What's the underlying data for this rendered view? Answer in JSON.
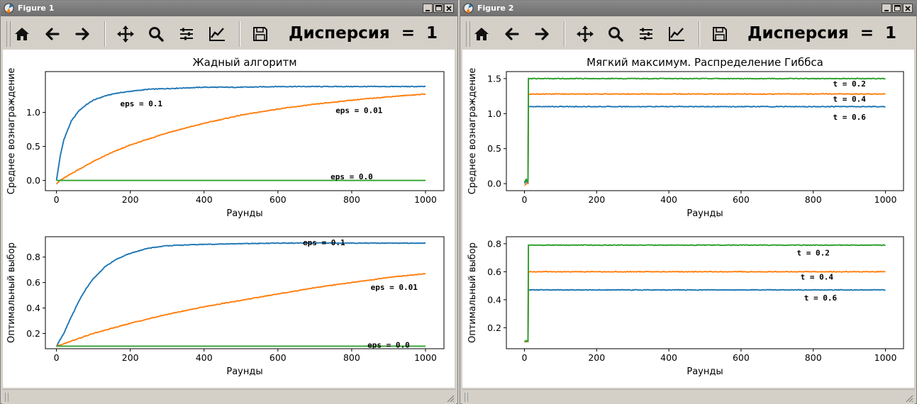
{
  "windows": [
    {
      "title": "Figure 1",
      "toolbar_message": "Дисперсия  =  1",
      "tools": [
        "home-icon",
        "back-arrow-icon",
        "forward-arrow-icon",
        "pan-icon",
        "zoom-icon",
        "subplots-icon",
        "edit-axes-icon",
        "save-icon"
      ]
    },
    {
      "title": "Figure 2",
      "toolbar_message": "Дисперсия  =  1",
      "tools": [
        "home-icon",
        "back-arrow-icon",
        "forward-arrow-icon",
        "pan-icon",
        "zoom-icon",
        "subplots-icon",
        "edit-axes-icon",
        "save-icon"
      ]
    }
  ],
  "colors": {
    "blue": "#1f77b4",
    "orange": "#ff7f0e",
    "green": "#2ca02c",
    "titlebar": "#7a7a7a",
    "window_bg": "#d4d0c8"
  },
  "chart_data": [
    {
      "type": "line",
      "figure": "Figure 1",
      "title": "Жадный алгоритм",
      "xlabel": "Раунды",
      "ylabel": "Среднее вознаграждение",
      "xlim": [
        -30,
        1050
      ],
      "ylim": [
        -0.15,
        1.6
      ],
      "xticks": [
        0,
        200,
        400,
        600,
        800,
        1000
      ],
      "yticks": [
        0.0,
        0.5,
        1.0
      ],
      "series": [
        {
          "color": "blue",
          "x": [
            0,
            10,
            20,
            40,
            60,
            80,
            100,
            130,
            160,
            200,
            250,
            300,
            400,
            500,
            600,
            700,
            800,
            900,
            1000
          ],
          "values": [
            0.0,
            0.35,
            0.6,
            0.87,
            1.02,
            1.11,
            1.18,
            1.24,
            1.28,
            1.31,
            1.34,
            1.35,
            1.37,
            1.37,
            1.38,
            1.38,
            1.38,
            1.38,
            1.38
          ]
        },
        {
          "color": "orange",
          "x": [
            0,
            10,
            25,
            50,
            100,
            150,
            200,
            300,
            400,
            500,
            600,
            700,
            800,
            900,
            1000
          ],
          "values": [
            -0.05,
            0.0,
            0.05,
            0.13,
            0.28,
            0.41,
            0.52,
            0.7,
            0.84,
            0.96,
            1.05,
            1.12,
            1.18,
            1.23,
            1.27
          ]
        },
        {
          "color": "green",
          "x": [
            0,
            1000
          ],
          "values": [
            0.0,
            0.0
          ]
        }
      ],
      "annotations": [
        {
          "text": "eps = 0.1",
          "x": 230,
          "y": 1.13
        },
        {
          "text": "eps = 0.01",
          "x": 820,
          "y": 1.03
        },
        {
          "text": "eps = 0.0",
          "x": 800,
          "y": 0.06
        }
      ]
    },
    {
      "type": "line",
      "figure": "Figure 1",
      "title": "",
      "xlabel": "Раунды",
      "ylabel": "Оптимальный выбор",
      "xlim": [
        -30,
        1050
      ],
      "ylim": [
        0.08,
        0.96
      ],
      "xticks": [
        0,
        200,
        400,
        600,
        800,
        1000
      ],
      "yticks": [
        0.2,
        0.4,
        0.6,
        0.8
      ],
      "series": [
        {
          "color": "blue",
          "x": [
            0,
            20,
            40,
            60,
            80,
            100,
            130,
            160,
            200,
            250,
            300,
            350,
            400,
            500,
            600,
            700,
            800,
            900,
            1000
          ],
          "values": [
            0.1,
            0.2,
            0.33,
            0.45,
            0.55,
            0.63,
            0.72,
            0.78,
            0.83,
            0.87,
            0.89,
            0.895,
            0.9,
            0.905,
            0.91,
            0.91,
            0.91,
            0.91,
            0.91
          ]
        },
        {
          "color": "orange",
          "x": [
            0,
            20,
            50,
            100,
            150,
            200,
            300,
            400,
            500,
            600,
            700,
            800,
            900,
            1000
          ],
          "values": [
            0.1,
            0.12,
            0.15,
            0.2,
            0.24,
            0.28,
            0.35,
            0.41,
            0.46,
            0.51,
            0.56,
            0.6,
            0.64,
            0.67
          ]
        },
        {
          "color": "green",
          "x": [
            0,
            1000
          ],
          "values": [
            0.1,
            0.1
          ]
        }
      ],
      "annotations": [
        {
          "text": "eps = 0.1",
          "x": 725,
          "y": 0.915
        },
        {
          "text": "eps = 0.01",
          "x": 915,
          "y": 0.565
        },
        {
          "text": "eps = 0.0",
          "x": 900,
          "y": 0.11
        }
      ]
    },
    {
      "type": "line",
      "figure": "Figure 2",
      "title": "Мягкий максимум. Распределение Гиббса",
      "xlabel": "Раунды",
      "ylabel": "Среднее вознаграждение",
      "xlim": [
        -50,
        1050
      ],
      "ylim": [
        -0.1,
        1.6
      ],
      "xticks": [
        0,
        200,
        400,
        600,
        800,
        1000
      ],
      "yticks": [
        0.0,
        0.5,
        1.0,
        1.5
      ],
      "series": [
        {
          "color": "blue",
          "x": [
            0,
            5,
            10,
            11,
            1000
          ],
          "values": [
            0.0,
            0.04,
            0.0,
            1.1,
            1.1
          ]
        },
        {
          "color": "orange",
          "x": [
            0,
            5,
            10,
            11,
            1000
          ],
          "values": [
            -0.03,
            0.0,
            0.02,
            1.28,
            1.28
          ]
        },
        {
          "color": "green",
          "x": [
            0,
            5,
            10,
            11,
            1000
          ],
          "values": [
            0.02,
            0.06,
            0.03,
            1.5,
            1.5
          ]
        }
      ],
      "annotations": [
        {
          "text": "t = 0.2",
          "x": 900,
          "y": 1.43
        },
        {
          "text": "t = 0.4",
          "x": 900,
          "y": 1.21
        },
        {
          "text": "t = 0.6",
          "x": 900,
          "y": 0.95
        }
      ]
    },
    {
      "type": "line",
      "figure": "Figure 2",
      "title": "",
      "xlabel": "Раунды",
      "ylabel": "Оптимальный выбор",
      "xlim": [
        -50,
        1050
      ],
      "ylim": [
        0.05,
        0.85
      ],
      "xticks": [
        0,
        200,
        400,
        600,
        800,
        1000
      ],
      "yticks": [
        0.2,
        0.4,
        0.6,
        0.8
      ],
      "series": [
        {
          "color": "blue",
          "x": [
            0,
            5,
            10,
            11,
            1000
          ],
          "values": [
            0.1,
            0.1,
            0.1,
            0.47,
            0.47
          ]
        },
        {
          "color": "orange",
          "x": [
            0,
            5,
            10,
            11,
            1000
          ],
          "values": [
            0.1,
            0.1,
            0.1,
            0.6,
            0.6
          ]
        },
        {
          "color": "green",
          "x": [
            0,
            5,
            10,
            11,
            1000
          ],
          "values": [
            0.1,
            0.11,
            0.1,
            0.79,
            0.79
          ]
        }
      ],
      "annotations": [
        {
          "text": "t = 0.2",
          "x": 800,
          "y": 0.735
        },
        {
          "text": "t = 0.4",
          "x": 810,
          "y": 0.565
        },
        {
          "text": "t = 0.6",
          "x": 820,
          "y": 0.415
        }
      ]
    }
  ]
}
